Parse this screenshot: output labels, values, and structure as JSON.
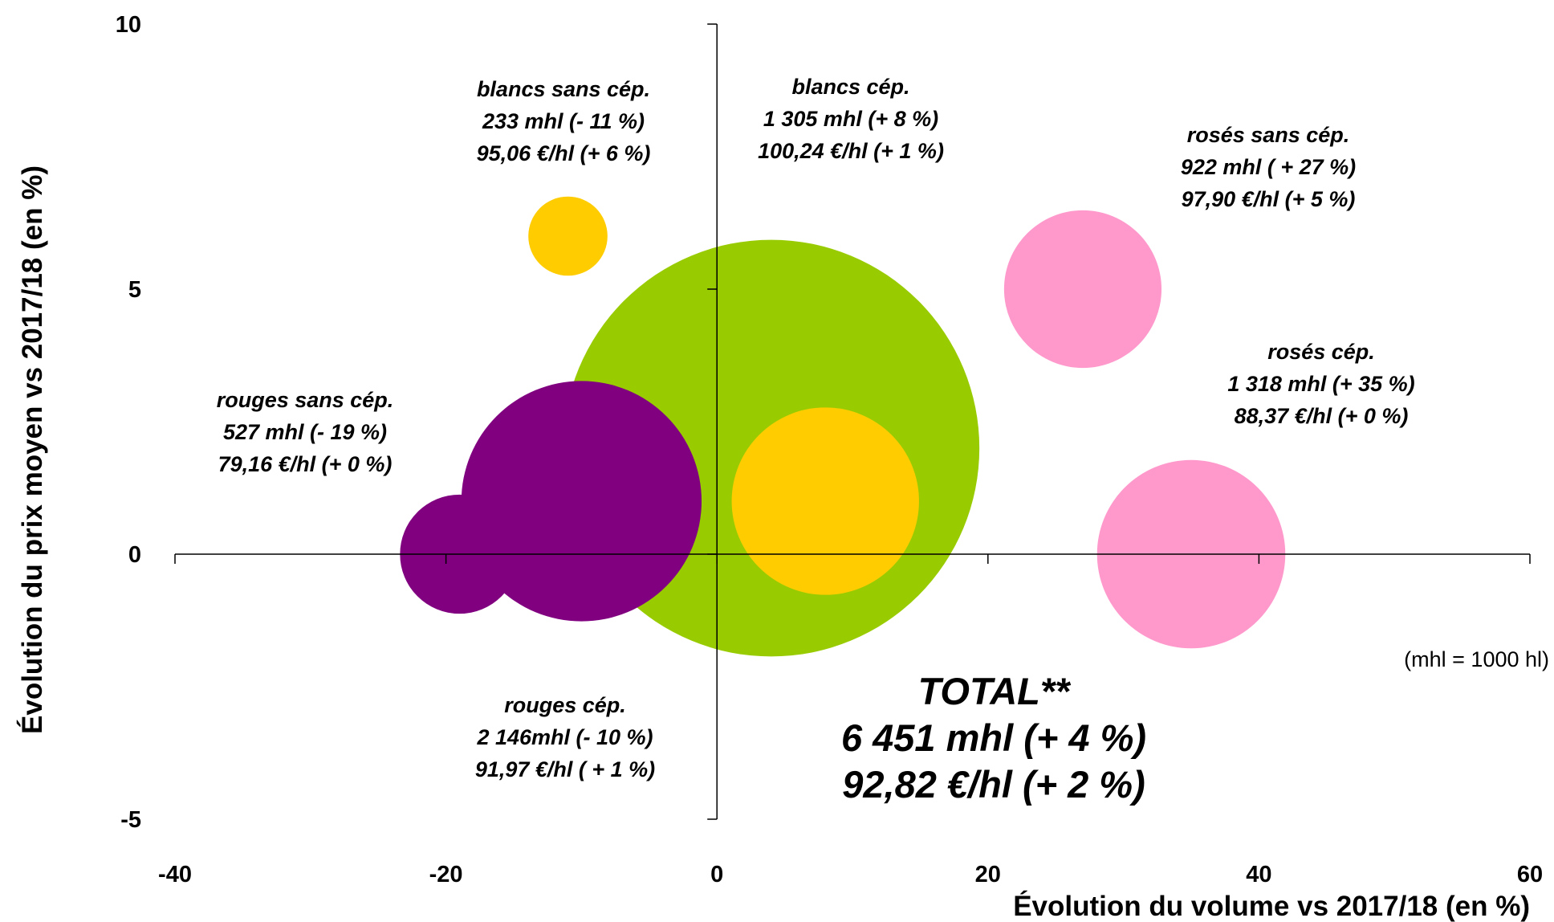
{
  "chart_data": {
    "type": "bubble",
    "xlabel": "Évolution du volume vs 2017/18 (en %)",
    "ylabel": "Évolution du prix moyen vs 2017/18 (en %)",
    "xlim": [
      -40,
      60
    ],
    "ylim": [
      -5,
      10
    ],
    "x_ticks": [
      "-40",
      "-20",
      "0",
      "20",
      "40",
      "60"
    ],
    "y_ticks": [
      "10",
      "5",
      "0",
      "-5"
    ],
    "grid": false,
    "note": "(mhl = 1000 hl)",
    "points": [
      {
        "x": 4,
        "y": 2,
        "size": 6451,
        "color": "#99cc00",
        "label": [
          "TOTAL**",
          "6 451 mhl (+ 4 %)",
          "92,82 €/hl (+ 2 %)"
        ]
      },
      {
        "x": -10,
        "y": 1,
        "size": 2146,
        "color": "#800080",
        "label": [
          "rouges cép.",
          "2 146mhl (- 10 %)",
          "91,97 €/hl ( + 1 %)"
        ]
      },
      {
        "x": -19,
        "y": 0,
        "size": 527,
        "color": "#800080",
        "label": [
          "rouges sans cép.",
          "527 mhl (- 19 %)",
          "79,16 €/hl (+ 0 %)"
        ]
      },
      {
        "x": 8,
        "y": 1,
        "size": 1305,
        "color": "#ffcc00",
        "label": [
          "blancs cép.",
          "1 305 mhl (+ 8 %)",
          "100,24 €/hl (+ 1 %)"
        ]
      },
      {
        "x": -11,
        "y": 6,
        "size": 233,
        "color": "#ffcc00",
        "label": [
          "blancs sans cép.",
          "233 mhl (- 11 %)",
          "95,06 €/hl (+ 6 %)"
        ]
      },
      {
        "x": 35,
        "y": 0,
        "size": 1318,
        "color": "#ff99cc",
        "label": [
          "rosés cép.",
          "1 318 mhl (+ 35 %)",
          "88,37 €/hl (+ 0 %)"
        ]
      },
      {
        "x": 27,
        "y": 5,
        "size": 922,
        "color": "#ff99cc",
        "label": [
          "rosés sans cép.",
          "922 mhl ( + 27 %)",
          "97,90 €/hl (+ 5 %)"
        ]
      }
    ]
  }
}
